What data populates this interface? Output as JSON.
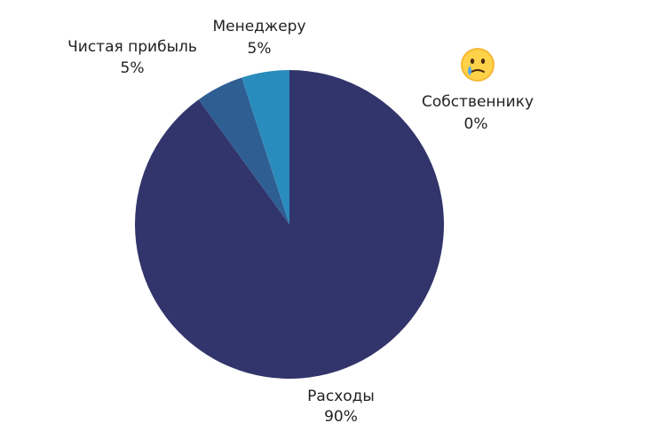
{
  "chart_data": {
    "type": "pie",
    "slices": [
      {
        "label": "Расходы",
        "value": 90,
        "value_label": "90%",
        "color": "#32356b"
      },
      {
        "label": "Чистая прибыль",
        "value": 5,
        "value_label": "5%",
        "color": "#2f5e93"
      },
      {
        "label": "Менеджеру",
        "value": 5,
        "value_label": "5%",
        "color": "#2a8cbc"
      },
      {
        "label": "Собственнику",
        "value": 0,
        "value_label": "0%",
        "color": "#2a8cbc"
      }
    ],
    "annotations": [
      {
        "target": "Собственнику",
        "icon": "crying-face-emoji"
      }
    ],
    "title": "",
    "legend": "none"
  }
}
